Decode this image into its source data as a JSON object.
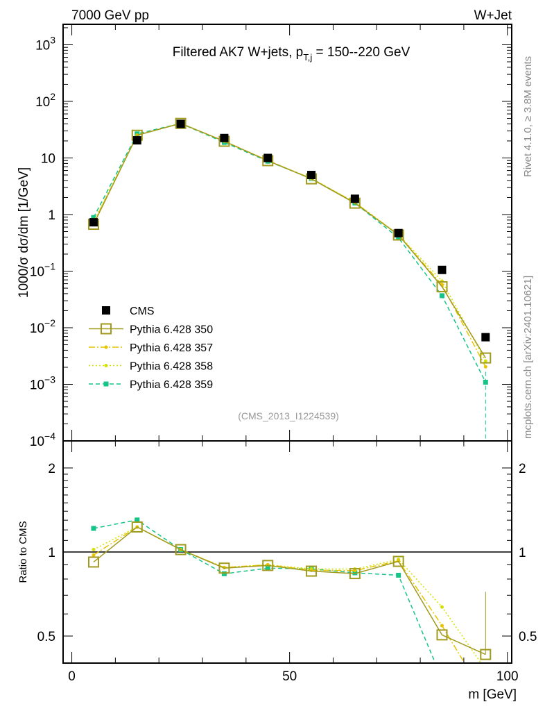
{
  "header": {
    "left": "7000 GeV pp",
    "right": "W+Jet"
  },
  "side_labels": {
    "rivet": "Rivet 4.1.0, ≥ 3.8M events",
    "mcplots": "mcplots.cern.ch [arXiv:2401.10621]"
  },
  "chart_data": [
    {
      "type": "line",
      "title": "Filtered AK7 W+jets, p",
      "title_sub": "T,j",
      "title_rest": " = 150--220 GeV",
      "ylabel": "1000/σ  dσ/dm [1/GeV]",
      "yscale": "log",
      "ylim": [
        0.0001,
        2300
      ],
      "xlim": [
        -2,
        101
      ],
      "ytick_labels": [
        {
          "v": 1000,
          "base": "10",
          "exp": "3"
        },
        {
          "v": 100,
          "base": "10",
          "exp": "2"
        },
        {
          "v": 10,
          "base": "10",
          "exp": ""
        },
        {
          "v": 1,
          "base": "1",
          "exp": ""
        },
        {
          "v": 0.1,
          "base": "10",
          "exp": "−1"
        },
        {
          "v": 0.01,
          "base": "10",
          "exp": "−2"
        },
        {
          "v": 0.001,
          "base": "10",
          "exp": "−3"
        },
        {
          "v": 0.0001,
          "base": "10",
          "exp": "−4"
        }
      ],
      "annotation": "(CMS_2013_I1224539)",
      "legend_position": "lower-left",
      "x": [
        5,
        15,
        25,
        35,
        45,
        55,
        65,
        75,
        85,
        95
      ],
      "series": [
        {
          "name": "CMS",
          "color": "#000000",
          "style": "data",
          "values": [
            0.73,
            20.5,
            40,
            22.5,
            10,
            5.0,
            1.9,
            0.47,
            0.105,
            0.0068
          ]
        },
        {
          "name": "Pythia 6.428 350",
          "color": "#a09a1e",
          "style": "solid",
          "marker": "open-square",
          "values": [
            0.672,
            25.2,
            40.8,
            19.7,
            8.95,
            4.27,
            1.59,
            0.435,
            0.053,
            0.00292
          ]
        },
        {
          "name": "Pythia 6.428 357",
          "color": "#e6c400",
          "style": "dashdot",
          "marker": "dot",
          "values": [
            0.712,
            25.2,
            40.8,
            19.8,
            9.0,
            4.3,
            1.63,
            0.437,
            0.0572,
            0.00204
          ]
        },
        {
          "name": "Pythia 6.428 358",
          "color": "#d4e000",
          "style": "dotted",
          "marker": "dot",
          "values": [
            0.745,
            25.2,
            40.8,
            19.8,
            9.0,
            4.35,
            1.65,
            0.442,
            0.0667,
            0.00258
          ]
        },
        {
          "name": "Pythia 6.428 359",
          "color": "#17c487",
          "style": "dashed",
          "marker": "filled-square",
          "values": [
            0.887,
            26.7,
            40.8,
            18.8,
            8.75,
            4.35,
            1.6,
            0.388,
            0.0368,
            0.00109
          ]
        }
      ]
    },
    {
      "type": "line",
      "ylabel": "Ratio to CMS",
      "xlabel": "m [GeV]",
      "yscale": "log",
      "ylim": [
        0.4,
        2.5
      ],
      "ytick_labels": [
        "0.5",
        "1",
        "2"
      ],
      "ytick_values": [
        0.5,
        1,
        2
      ],
      "xtick_labels": [
        "0",
        "50",
        "100"
      ],
      "xtick_values": [
        0,
        50,
        100
      ],
      "reference_line": 1
    }
  ]
}
